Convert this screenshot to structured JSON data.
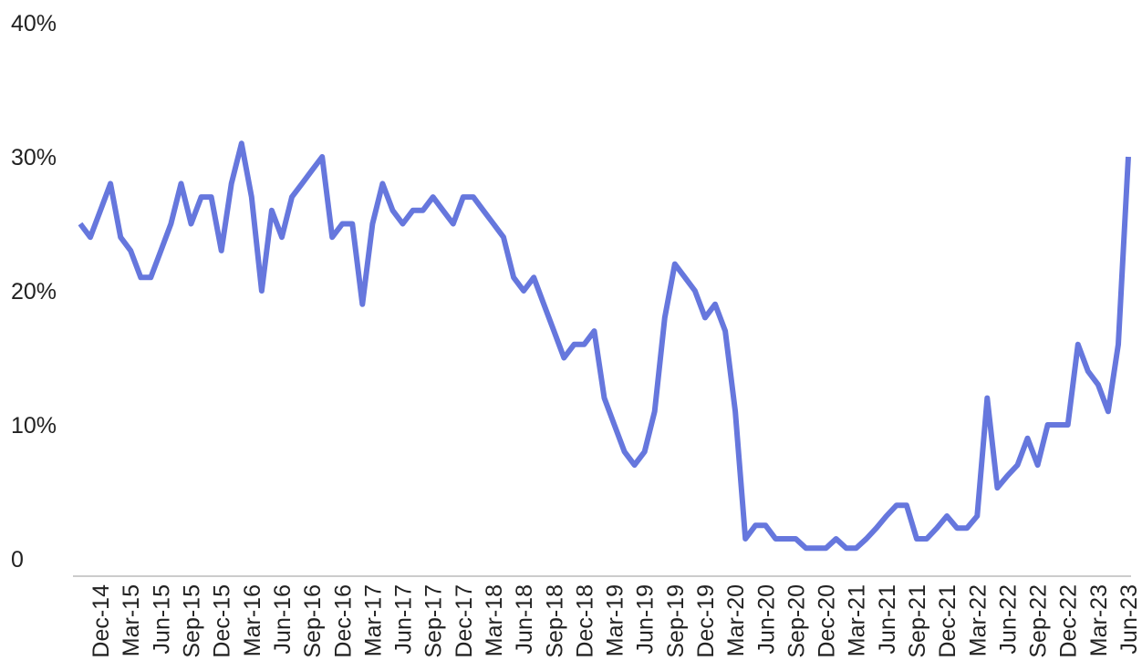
{
  "chart_data": {
    "type": "line",
    "title": "",
    "xlabel": "",
    "ylabel": "",
    "ylim": [
      0,
      40
    ],
    "grid": false,
    "legend": "none",
    "y_ticks": [
      "0",
      "10%",
      "20%",
      "30%",
      "40%"
    ],
    "y_tick_values": [
      0,
      10,
      20,
      30,
      40
    ],
    "x_tick_labels": [
      "Dec-14",
      "Mar-15",
      "Jun-15",
      "Sep-15",
      "Dec-15",
      "Mar-16",
      "Jun-16",
      "Sep-16",
      "Dec-16",
      "Mar-17",
      "Jun-17",
      "Sep-17",
      "Dec-17",
      "Mar-18",
      "Jun-18",
      "Sep-18",
      "Dec-18",
      "Mar-19",
      "Jun-19",
      "Sep-19",
      "Dec-19",
      "Mar-20",
      "Jun-20",
      "Sep-20",
      "Dec-20",
      "Mar-21",
      "Jun-21",
      "Sep-21",
      "Dec-21",
      "Mar-22",
      "Jun-22",
      "Sep-22",
      "Dec-22",
      "Mar-23",
      "Jun-23"
    ],
    "x": [
      "Oct-14",
      "Nov-14",
      "Dec-14",
      "Jan-15",
      "Feb-15",
      "Mar-15",
      "Apr-15",
      "May-15",
      "Jun-15",
      "Jul-15",
      "Aug-15",
      "Sep-15",
      "Oct-15",
      "Nov-15",
      "Dec-15",
      "Jan-16",
      "Feb-16",
      "Mar-16",
      "Apr-16",
      "May-16",
      "Jun-16",
      "Jul-16",
      "Aug-16",
      "Sep-16",
      "Oct-16",
      "Nov-16",
      "Dec-16",
      "Jan-17",
      "Feb-17",
      "Mar-17",
      "Apr-17",
      "May-17",
      "Jun-17",
      "Jul-17",
      "Aug-17",
      "Sep-17",
      "Oct-17",
      "Nov-17",
      "Dec-17",
      "Jan-18",
      "Feb-18",
      "Mar-18",
      "Apr-18",
      "May-18",
      "Jun-18",
      "Jul-18",
      "Aug-18",
      "Sep-18",
      "Oct-18",
      "Nov-18",
      "Dec-18",
      "Jan-19",
      "Feb-19",
      "Mar-19",
      "Apr-19",
      "May-19",
      "Jun-19",
      "Jul-19",
      "Aug-19",
      "Sep-19",
      "Oct-19",
      "Nov-19",
      "Dec-19",
      "Jan-20",
      "Feb-20",
      "Mar-20",
      "Apr-20",
      "May-20",
      "Jun-20",
      "Jul-20",
      "Aug-20",
      "Sep-20",
      "Oct-20",
      "Nov-20",
      "Dec-20",
      "Jan-21",
      "Feb-21",
      "Mar-21",
      "Apr-21",
      "May-21",
      "Jun-21",
      "Jul-21",
      "Aug-21",
      "Sep-21",
      "Oct-21",
      "Nov-21",
      "Dec-21",
      "Jan-22",
      "Feb-22",
      "Mar-22",
      "Apr-22",
      "May-22",
      "Jun-22",
      "Jul-22",
      "Aug-22",
      "Sep-22",
      "Oct-22",
      "Nov-22",
      "Dec-22",
      "Jan-23",
      "Feb-23",
      "Mar-23",
      "Apr-23",
      "May-23",
      "Jun-23"
    ],
    "series": [
      {
        "color": "#6677dd",
        "values": [
          25,
          24,
          26,
          28,
          24,
          23,
          21,
          21,
          23,
          25,
          28,
          25,
          27,
          27,
          23,
          28,
          31,
          27,
          20,
          26,
          24,
          27,
          28,
          29,
          30,
          24,
          25,
          25,
          19,
          25,
          28,
          26,
          25,
          26,
          26,
          27,
          26,
          25,
          27,
          27,
          26,
          25,
          24,
          21,
          20,
          21,
          19,
          17,
          15,
          16,
          16,
          17,
          12,
          10,
          8,
          7,
          8,
          11,
          18,
          22,
          21,
          20,
          18,
          19,
          17,
          11,
          1.5,
          2.5,
          2.5,
          1.5,
          1.5,
          1.5,
          0.8,
          0.8,
          0.8,
          1.5,
          0.8,
          0.8,
          1.5,
          2.3,
          3.2,
          4,
          4,
          1.5,
          1.5,
          2.3,
          3.2,
          2.3,
          2.3,
          3.2,
          12,
          5.3,
          6.2,
          7,
          9,
          7,
          10,
          10,
          10,
          16,
          14,
          13,
          11,
          16,
          30
        ]
      }
    ]
  }
}
